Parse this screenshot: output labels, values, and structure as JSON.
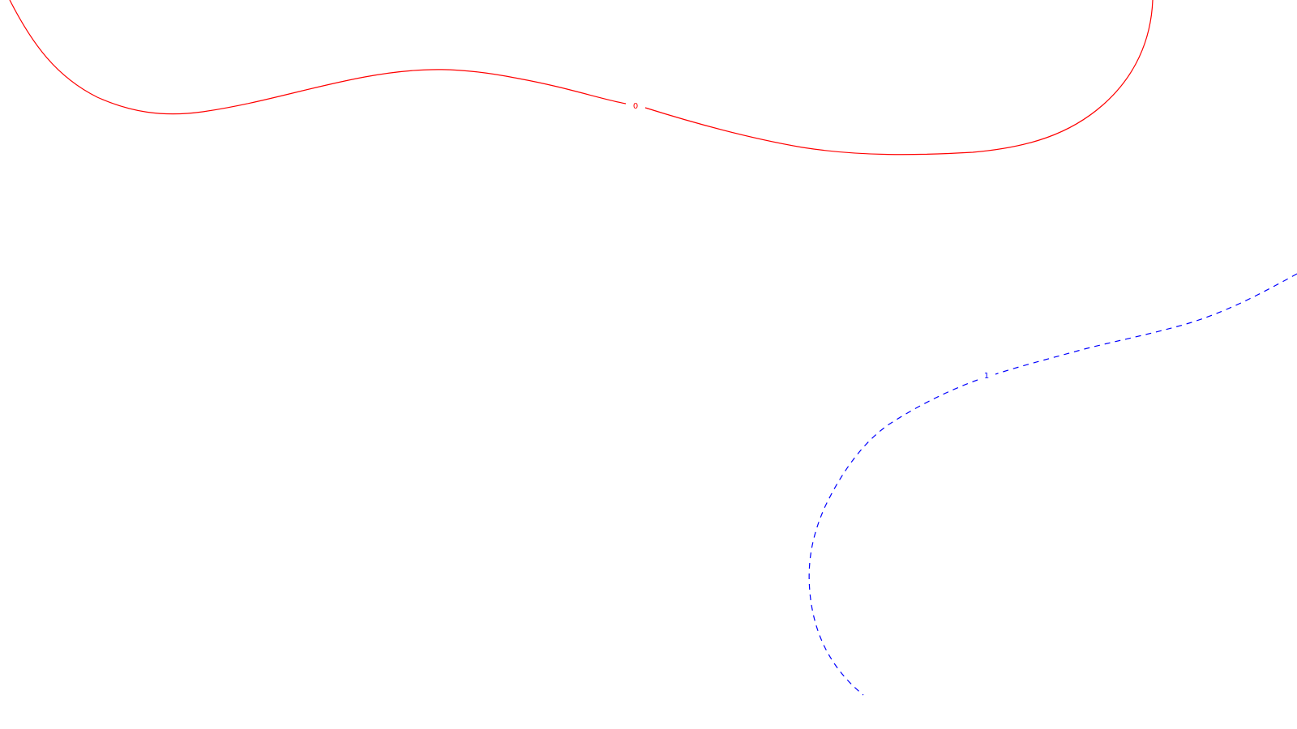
{
  "diagram": {
    "contours": [
      {
        "label": "0",
        "color": "#ff0000",
        "line_style": "solid"
      },
      {
        "label": "1",
        "color": "#0000ff",
        "line_style": "dashed"
      }
    ]
  }
}
